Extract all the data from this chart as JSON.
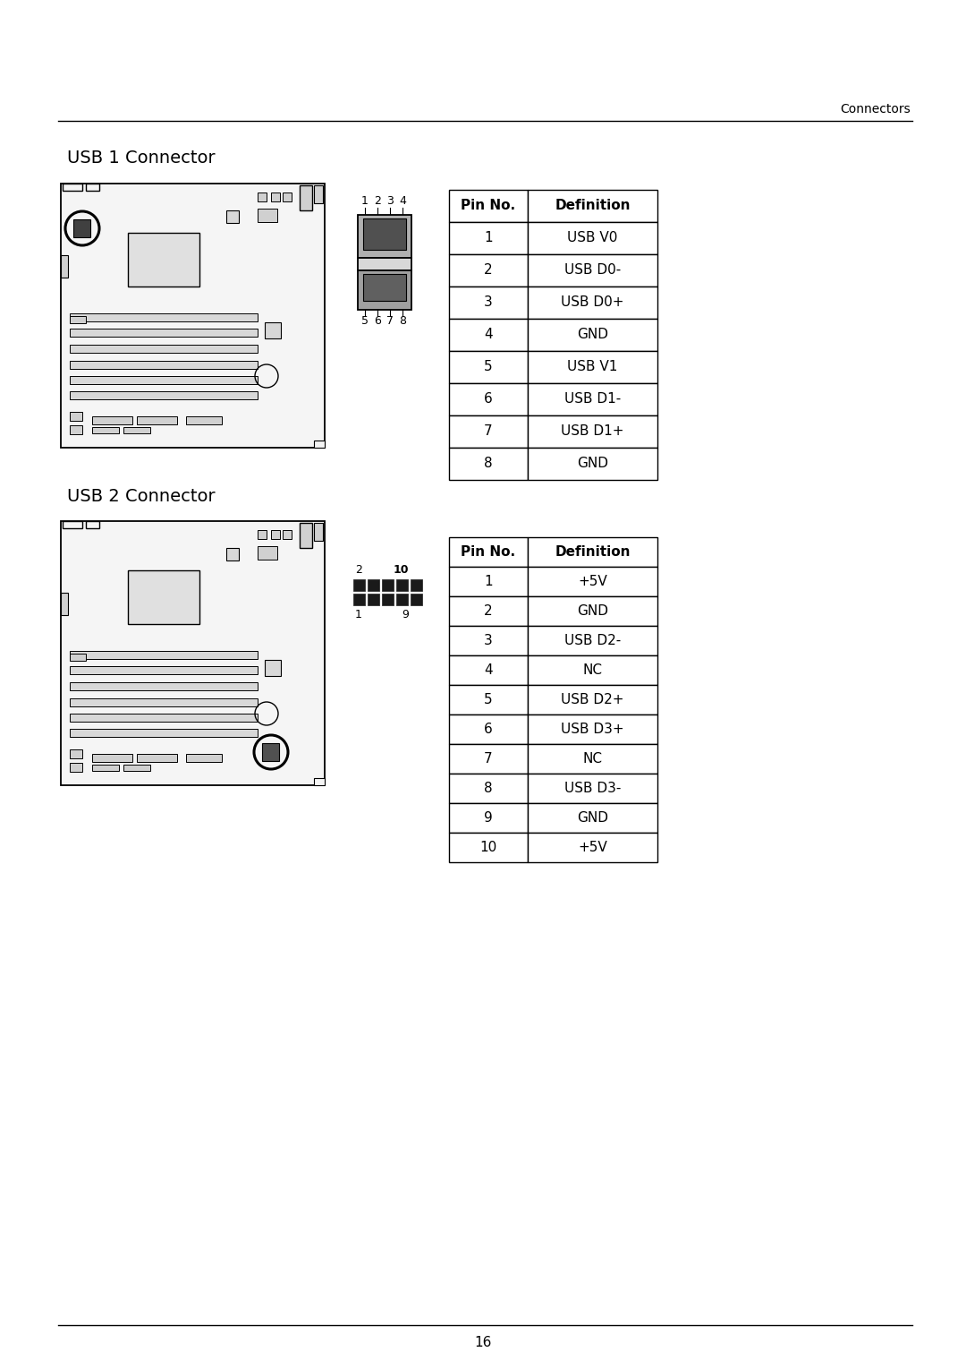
{
  "page_title": "Connectors",
  "section1_title": "USB 1 Connector",
  "section2_title": "USB 2 Connector",
  "usb1_pins": [
    [
      "Pin No.",
      "Definition"
    ],
    [
      "1",
      "USB V0"
    ],
    [
      "2",
      "USB D0-"
    ],
    [
      "3",
      "USB D0+"
    ],
    [
      "4",
      "GND"
    ],
    [
      "5",
      "USB V1"
    ],
    [
      "6",
      "USB D1-"
    ],
    [
      "7",
      "USB D1+"
    ],
    [
      "8",
      "GND"
    ]
  ],
  "usb2_pins": [
    [
      "Pin No.",
      "Definition"
    ],
    [
      "1",
      "+5V"
    ],
    [
      "2",
      "GND"
    ],
    [
      "3",
      "USB D2-"
    ],
    [
      "4",
      "NC"
    ],
    [
      "5",
      "USB D2+"
    ],
    [
      "6",
      "USB D3+"
    ],
    [
      "7",
      "NC"
    ],
    [
      "8",
      "USB D3-"
    ],
    [
      "9",
      "GND"
    ],
    [
      "10",
      "+5V"
    ]
  ],
  "page_number": "16",
  "bg_color": "#ffffff"
}
